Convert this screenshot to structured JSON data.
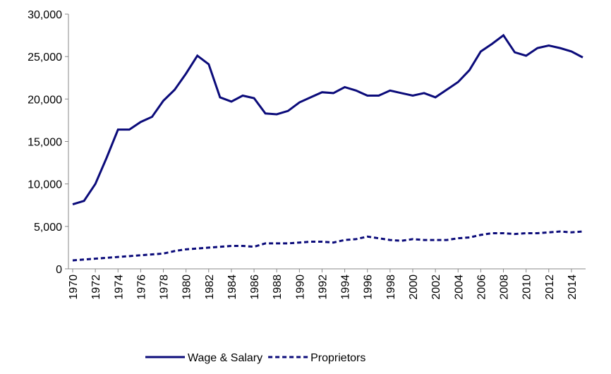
{
  "chart_data": {
    "type": "line",
    "x": [
      1970,
      1971,
      1972,
      1973,
      1974,
      1975,
      1976,
      1977,
      1978,
      1979,
      1980,
      1981,
      1982,
      1983,
      1984,
      1985,
      1986,
      1987,
      1988,
      1989,
      1990,
      1991,
      1992,
      1993,
      1994,
      1995,
      1996,
      1997,
      1998,
      1999,
      2000,
      2001,
      2002,
      2003,
      2004,
      2005,
      2006,
      2007,
      2008,
      2009,
      2010,
      2011,
      2012,
      2013,
      2014,
      2015
    ],
    "series": [
      {
        "name": "Wage & Salary",
        "color": "#0b0b7a",
        "dash": "solid",
        "values": [
          7600,
          8000,
          10000,
          13100,
          16400,
          16400,
          17300,
          17900,
          19800,
          21100,
          23000,
          25100,
          24100,
          20200,
          19700,
          20400,
          20100,
          18300,
          18200,
          18600,
          19600,
          20200,
          20800,
          20700,
          21400,
          21000,
          20400,
          20400,
          21000,
          20700,
          20400,
          20700,
          20200,
          21100,
          22000,
          23400,
          25600,
          26500,
          27500,
          25500,
          25100,
          26000,
          26300,
          26000,
          25600,
          24900
        ]
      },
      {
        "name": "Proprietors",
        "color": "#0b0b7a",
        "dash": "dashed",
        "values": [
          1000,
          1100,
          1200,
          1300,
          1400,
          1500,
          1600,
          1700,
          1800,
          2100,
          2300,
          2400,
          2500,
          2600,
          2700,
          2700,
          2600,
          3000,
          3000,
          3000,
          3100,
          3200,
          3200,
          3100,
          3400,
          3500,
          3800,
          3600,
          3400,
          3300,
          3500,
          3400,
          3400,
          3400,
          3600,
          3700,
          4000,
          4200,
          4200,
          4100,
          4200,
          4200,
          4300,
          4400,
          4300,
          4400
        ]
      }
    ],
    "xlim": [
      1970,
      2015
    ],
    "xticks": [
      1970,
      1972,
      1974,
      1976,
      1978,
      1980,
      1982,
      1984,
      1986,
      1988,
      1990,
      1992,
      1994,
      1996,
      1998,
      2000,
      2002,
      2004,
      2006,
      2008,
      2010,
      2012,
      2014
    ],
    "ylim": [
      0,
      30000
    ],
    "yticks": [
      0,
      {
        "value": 5000,
        "label": "5,000"
      },
      {
        "value": 10000,
        "label": "10,000"
      },
      {
        "value": 15000,
        "label": "15,000"
      },
      {
        "value": 20000,
        "label": "20,000"
      },
      {
        "value": 25000,
        "label": "25,000"
      },
      {
        "value": 30000,
        "label": "30,000"
      }
    ],
    "grid": false,
    "legend": "bottom"
  }
}
